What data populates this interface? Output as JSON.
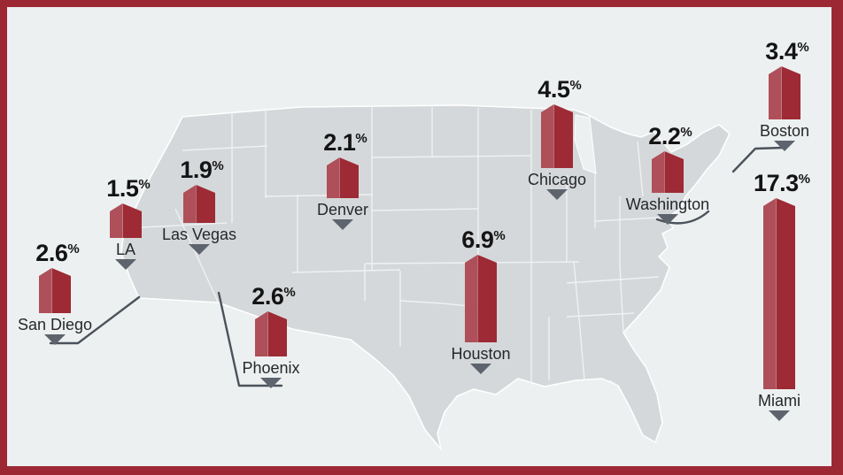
{
  "chart": {
    "unit": "%",
    "points": [
      {
        "id": "san-diego",
        "label": "San Diego",
        "value": "2.6"
      },
      {
        "id": "la",
        "label": "LA",
        "value": "1.5"
      },
      {
        "id": "las-vegas",
        "label": "Las Vegas",
        "value": "1.9"
      },
      {
        "id": "phoenix",
        "label": "Phoenix",
        "value": "2.6"
      },
      {
        "id": "denver",
        "label": "Denver",
        "value": "2.1"
      },
      {
        "id": "houston",
        "label": "Houston",
        "value": "6.9"
      },
      {
        "id": "chicago",
        "label": "Chicago",
        "value": "4.5"
      },
      {
        "id": "washington",
        "label": "Washington",
        "value": "2.2"
      },
      {
        "id": "boston",
        "label": "Boston",
        "value": "3.4"
      },
      {
        "id": "miami",
        "label": "Miami",
        "value": "17.3"
      }
    ]
  },
  "chart_data": {
    "type": "bar",
    "subtype": "us-map-city-bars",
    "title": "",
    "unit": "%",
    "categories": [
      "San Diego",
      "LA",
      "Las Vegas",
      "Phoenix",
      "Denver",
      "Houston",
      "Chicago",
      "Washington",
      "Boston",
      "Miami"
    ],
    "values": [
      2.6,
      1.5,
      1.9,
      2.6,
      2.1,
      6.9,
      4.5,
      2.2,
      3.4,
      17.3
    ],
    "legend": "none",
    "grid": "off",
    "colors": {
      "frame": "#9c2833",
      "background": "#edf0f1",
      "map_fill": "#d5d8da",
      "state_lines": "#ffffff",
      "bar_light": "#ae4f59",
      "bar_dark": "#9d2a34",
      "marker": "#5d646d",
      "leader_line": "#4b525a",
      "value_text": "#141414",
      "label_text": "#26272a"
    }
  }
}
